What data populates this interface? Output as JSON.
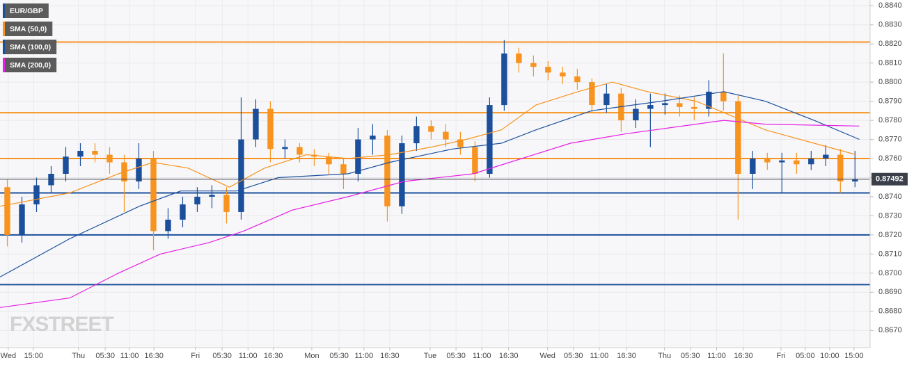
{
  "chart_data": {
    "type": "candlestick",
    "watermark": "FXSTREET",
    "xlim": [
      0,
      178.6
    ],
    "ylim": [
      0.8661,
      0.8843
    ],
    "yticks": [
      {
        "value": 0.884,
        "label": "0.8840"
      },
      {
        "value": 0.883,
        "label": "0.8830"
      },
      {
        "value": 0.882,
        "label": "0.8820"
      },
      {
        "value": 0.881,
        "label": "0.8810"
      },
      {
        "value": 0.88,
        "label": "0.8800"
      },
      {
        "value": 0.879,
        "label": "0.8790"
      },
      {
        "value": 0.878,
        "label": "0.8780"
      },
      {
        "value": 0.877,
        "label": "0.8770"
      },
      {
        "value": 0.876,
        "label": "0.8760"
      },
      {
        "value": 0.875,
        "label": "0.8750"
      },
      {
        "value": 0.874,
        "label": "0.8740"
      },
      {
        "value": 0.873,
        "label": "0.8730"
      },
      {
        "value": 0.872,
        "label": "0.8720"
      },
      {
        "value": 0.871,
        "label": "0.8710"
      },
      {
        "value": 0.87,
        "label": "0.8700"
      },
      {
        "value": 0.869,
        "label": "0.8690"
      },
      {
        "value": 0.868,
        "label": "0.8680"
      },
      {
        "value": 0.867,
        "label": "0.8670"
      }
    ],
    "xticks": [
      {
        "value": 1.7,
        "label": "Wed"
      },
      {
        "value": 6.9,
        "label": "15:00"
      },
      {
        "value": 16.1,
        "label": "Thu"
      },
      {
        "value": 21.6,
        "label": "05:30"
      },
      {
        "value": 26.6,
        "label": "11:00"
      },
      {
        "value": 31.6,
        "label": "16:30"
      },
      {
        "value": 40.1,
        "label": "Fri"
      },
      {
        "value": 45.6,
        "label": "05:30"
      },
      {
        "value": 50.9,
        "label": "11:00"
      },
      {
        "value": 56.1,
        "label": "16:30"
      },
      {
        "value": 64,
        "label": "Mon"
      },
      {
        "value": 69.6,
        "label": "05:30"
      },
      {
        "value": 74.7,
        "label": "11:00"
      },
      {
        "value": 80,
        "label": "16:30"
      },
      {
        "value": 88.3,
        "label": "Tue"
      },
      {
        "value": 93.6,
        "label": "05:30"
      },
      {
        "value": 98.9,
        "label": "11:00"
      },
      {
        "value": 104.4,
        "label": "16:30"
      },
      {
        "value": 112.4,
        "label": "Wed"
      },
      {
        "value": 117.7,
        "label": "05:30"
      },
      {
        "value": 123,
        "label": "11:00"
      },
      {
        "value": 128.6,
        "label": "16:30"
      },
      {
        "value": 136.4,
        "label": "Thu"
      },
      {
        "value": 141.7,
        "label": "05:30"
      },
      {
        "value": 147.1,
        "label": "11:00"
      },
      {
        "value": 152.6,
        "label": "16:30"
      },
      {
        "value": 160.3,
        "label": "Fri"
      },
      {
        "value": 165.3,
        "label": "05:00"
      },
      {
        "value": 170.3,
        "label": "10:00"
      },
      {
        "value": 175.3,
        "label": "15:00"
      }
    ],
    "grid": true,
    "series": [
      {
        "name": "EUR/GBP",
        "type": "candlestick",
        "color": "#1b4f9c",
        "up_color": "#1b4f9c",
        "down_color": "#f7931e",
        "x": [
          1.5,
          4.5,
          7.5,
          10.5,
          13.5,
          16.5,
          19.5,
          22.5,
          25.5,
          28.5,
          31.5,
          34.5,
          37.5,
          40.5,
          43.5,
          46.5,
          49.5,
          52.5,
          55.5,
          58.5,
          61.5,
          64.5,
          67.5,
          70.5,
          73.5,
          76.5,
          79.5,
          82.5,
          85.5,
          88.5,
          91.5,
          94.5,
          97.5,
          100.5,
          103.5,
          106.5,
          109.5,
          112.5,
          115.5,
          118.5,
          121.5,
          124.5,
          127.5,
          130.5,
          133.5,
          136.5,
          139.5,
          142.5,
          145.5,
          148.5,
          151.5,
          154.5,
          157.5,
          160.5,
          163.5,
          166.5,
          169.5,
          172.5,
          175.5
        ],
        "open": [
          0.8745,
          0.872,
          0.8736,
          0.8746,
          0.8752,
          0.8761,
          0.8764,
          0.8762,
          0.8758,
          0.8748,
          0.876,
          0.8722,
          0.8728,
          0.8736,
          0.874,
          0.8741,
          0.8732,
          0.877,
          0.8786,
          0.8765,
          0.8766,
          0.8762,
          0.8761,
          0.8757,
          0.8752,
          0.877,
          0.8772,
          0.8735,
          0.8768,
          0.8777,
          0.8774,
          0.877,
          0.8766,
          0.8752,
          0.8788,
          0.8815,
          0.881,
          0.8808,
          0.8805,
          0.8803,
          0.88,
          0.8788,
          0.8794,
          0.878,
          0.8786,
          0.8788,
          0.8789,
          0.8787,
          0.8786,
          0.8795,
          0.879,
          0.8752,
          0.876,
          0.8758,
          0.8759,
          0.8757,
          0.876,
          0.8762,
          0.8748
        ],
        "high": [
          0.8749,
          0.874,
          0.875,
          0.8756,
          0.8766,
          0.8768,
          0.8768,
          0.8766,
          0.8762,
          0.8768,
          0.8764,
          0.8734,
          0.874,
          0.8745,
          0.8746,
          0.8745,
          0.8792,
          0.8791,
          0.879,
          0.877,
          0.8768,
          0.8765,
          0.8763,
          0.876,
          0.8776,
          0.8778,
          0.8775,
          0.8772,
          0.8782,
          0.878,
          0.8778,
          0.8774,
          0.8769,
          0.8792,
          0.8822,
          0.8818,
          0.8814,
          0.8811,
          0.8808,
          0.8807,
          0.8802,
          0.8799,
          0.8797,
          0.8791,
          0.8794,
          0.8794,
          0.8793,
          0.8792,
          0.8801,
          0.8815,
          0.8793,
          0.8764,
          0.8763,
          0.8763,
          0.8763,
          0.8764,
          0.8767,
          0.8765,
          0.8764
        ],
        "low": [
          0.8714,
          0.8716,
          0.8732,
          0.8742,
          0.8748,
          0.8756,
          0.8758,
          0.8752,
          0.8732,
          0.8744,
          0.8712,
          0.8718,
          0.8724,
          0.8732,
          0.8734,
          0.8726,
          0.8728,
          0.8766,
          0.8758,
          0.876,
          0.8758,
          0.8756,
          0.8752,
          0.8744,
          0.8748,
          0.8762,
          0.8727,
          0.8731,
          0.8764,
          0.877,
          0.8766,
          0.8762,
          0.8748,
          0.875,
          0.8785,
          0.8805,
          0.8803,
          0.8801,
          0.8799,
          0.8796,
          0.8784,
          0.8784,
          0.8774,
          0.8776,
          0.8766,
          0.8783,
          0.8782,
          0.878,
          0.8782,
          0.8785,
          0.8728,
          0.8744,
          0.8754,
          0.8742,
          0.8752,
          0.8754,
          0.8756,
          0.8742,
          0.8745
        ],
        "close": [
          0.872,
          0.8736,
          0.8746,
          0.8752,
          0.8761,
          0.8764,
          0.8762,
          0.8758,
          0.8748,
          0.876,
          0.8722,
          0.8728,
          0.8736,
          0.874,
          0.8741,
          0.8732,
          0.877,
          0.8786,
          0.8765,
          0.8766,
          0.8762,
          0.8761,
          0.8757,
          0.8752,
          0.877,
          0.8772,
          0.8735,
          0.8768,
          0.8777,
          0.8774,
          0.877,
          0.8766,
          0.8752,
          0.8788,
          0.8815,
          0.881,
          0.8808,
          0.8805,
          0.8803,
          0.88,
          0.8788,
          0.8794,
          0.878,
          0.8786,
          0.8788,
          0.8789,
          0.8787,
          0.8786,
          0.8795,
          0.879,
          0.8752,
          0.876,
          0.8758,
          0.8759,
          0.8757,
          0.876,
          0.8762,
          0.8748,
          0.8749
        ]
      },
      {
        "name": "SMA (50,0)",
        "type": "line",
        "color": "#f7931e",
        "x": [
          0,
          14.3,
          24.3,
          31.4,
          38.6,
          47.1,
          54.3,
          62.9,
          71.4,
          80,
          88.6,
          95.7,
          102.9,
          110,
          118.6,
          125.7,
          132.9,
          142.9,
          148.6,
          157.1,
          167.1,
          175.7
        ],
        "values": [
          0.8735,
          0.8742,
          0.8752,
          0.8758,
          0.8755,
          0.8745,
          0.8755,
          0.8762,
          0.876,
          0.8762,
          0.8766,
          0.877,
          0.8775,
          0.8788,
          0.8795,
          0.88,
          0.8795,
          0.879,
          0.8784,
          0.8775,
          0.8768,
          0.8762
        ]
      },
      {
        "name": "SMA (100,0)",
        "type": "line",
        "color": "#1b4f9c",
        "x": [
          0,
          14.3,
          28.6,
          37.1,
          48.6,
          57.1,
          71.4,
          80,
          92.9,
          102.9,
          110,
          121.4,
          135.7,
          148.6,
          157.1,
          167.1,
          176.4
        ],
        "values": [
          0.8698,
          0.8718,
          0.8735,
          0.8743,
          0.8743,
          0.875,
          0.8752,
          0.8758,
          0.8765,
          0.8768,
          0.8775,
          0.8785,
          0.879,
          0.8795,
          0.879,
          0.878,
          0.877
        ]
      },
      {
        "name": "SMA (200,0)",
        "type": "line",
        "color": "#e61ee6",
        "x": [
          0,
          14.3,
          24.3,
          32.9,
          42.9,
          50,
          60,
          71.4,
          82.9,
          97.1,
          107.1,
          117.1,
          128.6,
          142.9,
          148.6,
          157.1,
          176.4
        ],
        "values": [
          0.8682,
          0.8687,
          0.87,
          0.871,
          0.8716,
          0.8722,
          0.8733,
          0.874,
          0.8748,
          0.8752,
          0.876,
          0.8768,
          0.8773,
          0.8778,
          0.878,
          0.8778,
          0.8777
        ]
      }
    ],
    "levels": [
      {
        "value": 0.8821,
        "color": "#f7931e"
      },
      {
        "value": 0.8784,
        "color": "#f7931e"
      },
      {
        "value": 0.876,
        "color": "#f7931e"
      },
      {
        "value": 0.8742,
        "color": "#1b4f9c"
      },
      {
        "value": 0.872,
        "color": "#1b4f9c"
      },
      {
        "value": 0.8694,
        "color": "#1b4f9c"
      }
    ],
    "last_price": 0.87492
  }
}
